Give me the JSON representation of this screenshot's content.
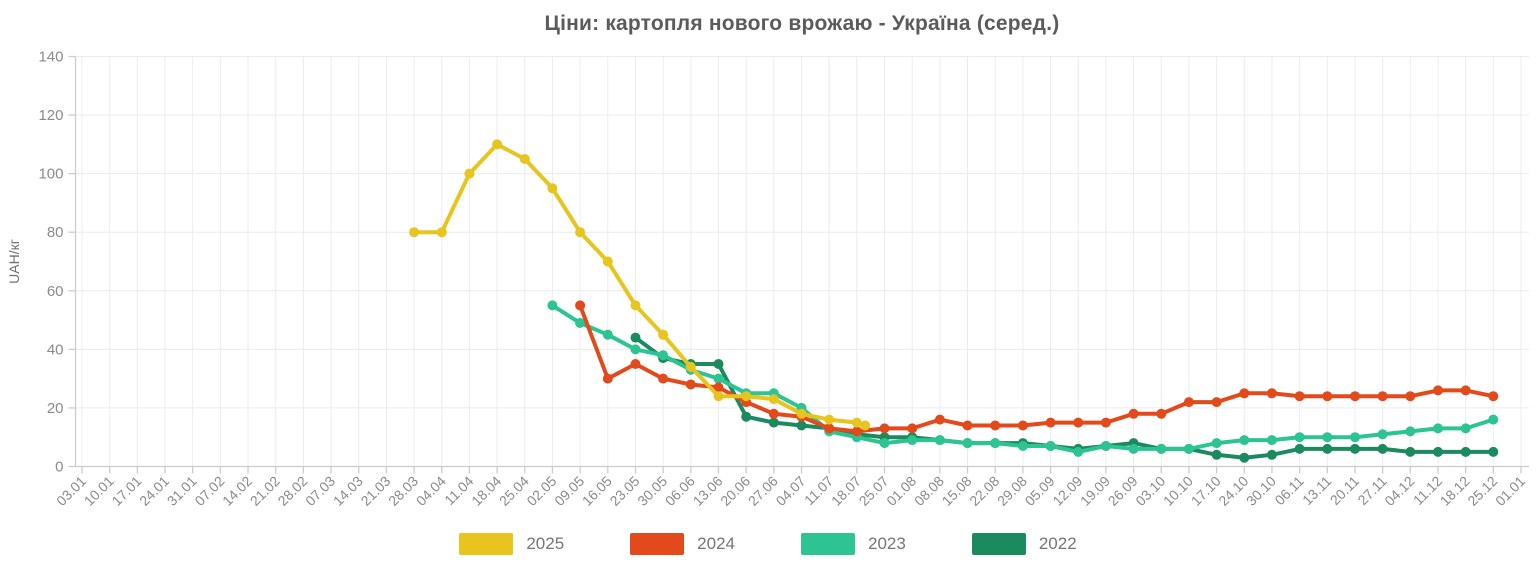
{
  "chart_data": {
    "type": "line",
    "title": "Ціни: картопля нового врожаю - Україна (серед.)",
    "xlabel": "",
    "ylabel": "UAH/кг",
    "ylim": [
      0,
      140
    ],
    "y_tick_step": 20,
    "grid": true,
    "legend_position": "bottom",
    "categories": [
      "03.01",
      "10.01",
      "17.01",
      "24.01",
      "31.01",
      "07.02",
      "14.02",
      "21.02",
      "28.02",
      "07.03",
      "14.03",
      "21.03",
      "28.03",
      "04.04",
      "11.04",
      "18.04",
      "25.04",
      "02.05",
      "09.05",
      "16.05",
      "23.05",
      "30.05",
      "06.06",
      "13.06",
      "20.06",
      "27.06",
      "04.07",
      "11.07",
      "18.07",
      "25.07",
      "01.08",
      "08.08",
      "15.08",
      "22.08",
      "29.08",
      "05.09",
      "12.09",
      "19.09",
      "26.09",
      "03.10",
      "10.10",
      "17.10",
      "24.10",
      "30.10",
      "06.11",
      "13.11",
      "20.11",
      "27.11",
      "04.12",
      "11.12",
      "18.12",
      "25.12",
      "01.01"
    ],
    "series": [
      {
        "name": "2025",
        "color": "#e7c41e",
        "points": [
          [
            12,
            80
          ],
          [
            13,
            80
          ],
          [
            14,
            100
          ],
          [
            15,
            110
          ],
          [
            16,
            105
          ],
          [
            17,
            95
          ],
          [
            18,
            80
          ],
          [
            19,
            70
          ],
          [
            20,
            55
          ],
          [
            21,
            45
          ],
          [
            22,
            34
          ],
          [
            23,
            24
          ],
          [
            24,
            24
          ],
          [
            25,
            23
          ],
          [
            26,
            18
          ],
          [
            27,
            16
          ],
          [
            28,
            15
          ],
          [
            28.3,
            14
          ]
        ]
      },
      {
        "name": "2024",
        "color": "#e2491b",
        "points": [
          [
            18,
            55
          ],
          [
            19,
            30
          ],
          [
            20,
            35
          ],
          [
            21,
            30
          ],
          [
            22,
            28
          ],
          [
            23,
            27
          ],
          [
            24,
            22
          ],
          [
            25,
            18
          ],
          [
            26,
            17
          ],
          [
            27,
            13
          ],
          [
            28,
            12
          ],
          [
            29,
            13
          ],
          [
            30,
            13
          ],
          [
            31,
            16
          ],
          [
            32,
            14
          ],
          [
            33,
            14
          ],
          [
            34,
            14
          ],
          [
            35,
            15
          ],
          [
            36,
            15
          ],
          [
            37,
            15
          ],
          [
            38,
            18
          ],
          [
            39,
            18
          ],
          [
            40,
            22
          ],
          [
            41,
            22
          ],
          [
            42,
            25
          ],
          [
            43,
            25
          ],
          [
            44,
            24
          ],
          [
            45,
            24
          ],
          [
            46,
            24
          ],
          [
            47,
            24
          ],
          [
            48,
            24
          ],
          [
            49,
            26
          ],
          [
            50,
            26
          ],
          [
            51,
            24
          ]
        ]
      },
      {
        "name": "2023",
        "color": "#2dc392",
        "points": [
          [
            17,
            55
          ],
          [
            18,
            49
          ],
          [
            19,
            45
          ],
          [
            20,
            40
          ],
          [
            21,
            38
          ],
          [
            22,
            33
          ],
          [
            23,
            30
          ],
          [
            24,
            25
          ],
          [
            25,
            25
          ],
          [
            26,
            20
          ],
          [
            27,
            12
          ],
          [
            28,
            10
          ],
          [
            29,
            8
          ],
          [
            30,
            9
          ],
          [
            31,
            9
          ],
          [
            32,
            8
          ],
          [
            33,
            8
          ],
          [
            34,
            7
          ],
          [
            35,
            7
          ],
          [
            36,
            5
          ],
          [
            37,
            7
          ],
          [
            38,
            6
          ],
          [
            39,
            6
          ],
          [
            40,
            6
          ],
          [
            41,
            8
          ],
          [
            42,
            9
          ],
          [
            43,
            9
          ],
          [
            44,
            10
          ],
          [
            45,
            10
          ],
          [
            46,
            10
          ],
          [
            47,
            11
          ],
          [
            48,
            12
          ],
          [
            49,
            13
          ],
          [
            50,
            13
          ],
          [
            51,
            16
          ]
        ]
      },
      {
        "name": "2022",
        "color": "#1b8a5f",
        "points": [
          [
            20,
            44
          ],
          [
            21,
            37
          ],
          [
            22,
            35
          ],
          [
            23,
            35
          ],
          [
            24,
            17
          ],
          [
            25,
            15
          ],
          [
            26,
            14
          ],
          [
            27,
            13
          ],
          [
            28,
            11
          ],
          [
            29,
            10
          ],
          [
            30,
            10
          ],
          [
            31,
            9
          ],
          [
            32,
            8
          ],
          [
            33,
            8
          ],
          [
            34,
            8
          ],
          [
            35,
            7
          ],
          [
            36,
            6
          ],
          [
            37,
            7
          ],
          [
            38,
            8
          ],
          [
            39,
            6
          ],
          [
            40,
            6
          ],
          [
            41,
            4
          ],
          [
            42,
            3
          ],
          [
            43,
            4
          ],
          [
            44,
            6
          ],
          [
            45,
            6
          ],
          [
            46,
            6
          ],
          [
            47,
            6
          ],
          [
            48,
            5
          ],
          [
            49,
            5
          ],
          [
            50,
            5
          ],
          [
            51,
            5
          ]
        ]
      }
    ],
    "style": {
      "grid_color": "#ececec",
      "axis_color": "#cccccc",
      "tick_label_color": "#8a8a8a",
      "title_color": "#5b5b5b",
      "ylabel_color": "#6f6f6f",
      "legend_text_color": "#757575"
    }
  }
}
